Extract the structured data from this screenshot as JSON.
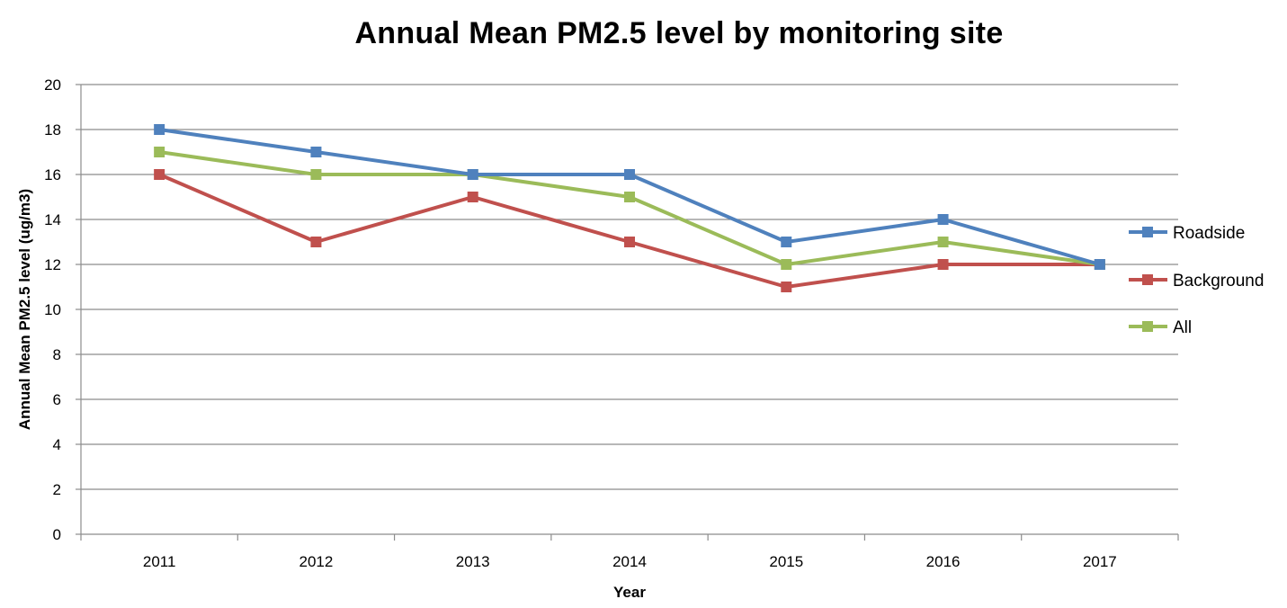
{
  "chart_data": {
    "type": "line",
    "title": "Annual Mean PM2.5 level by monitoring site",
    "xlabel": "Year",
    "ylabel": "Annual Mean PM2.5 level (ug/m3)",
    "categories": [
      "2011",
      "2012",
      "2013",
      "2014",
      "2015",
      "2016",
      "2017"
    ],
    "ylim": [
      0,
      20
    ],
    "yticks": [
      0,
      2,
      4,
      6,
      8,
      10,
      12,
      14,
      16,
      18,
      20
    ],
    "grid": true,
    "legend_position": "right",
    "series": [
      {
        "name": "Roadside",
        "color": "#4f81bd",
        "values": [
          18,
          17,
          16,
          16,
          13,
          14,
          12
        ]
      },
      {
        "name": "Background",
        "color": "#c0504d",
        "values": [
          16,
          13,
          15,
          13,
          11,
          12,
          12
        ]
      },
      {
        "name": "All",
        "color": "#9bbb59",
        "values": [
          17,
          16,
          16,
          15,
          12,
          13,
          12
        ]
      }
    ]
  }
}
